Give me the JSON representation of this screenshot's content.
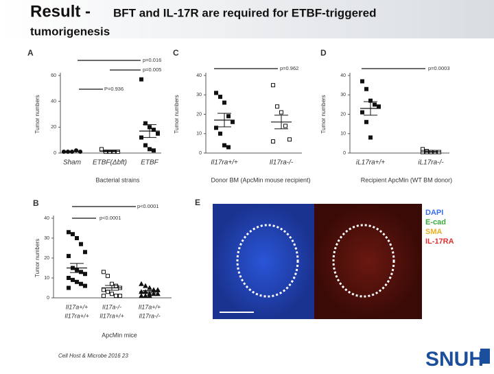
{
  "slide": {
    "title_lead": "Result -",
    "title_rest": "BFT and IL-17R are required for ETBF-triggered",
    "title_line2": "tumorigenesis",
    "citation": "Cell Host & Microbe 2016 23",
    "logo": "SNUH"
  },
  "image_panel": {
    "label": "E",
    "legend": [
      {
        "text": "DAPI",
        "color": "#3a6cf0"
      },
      {
        "text": "E-cad",
        "color": "#3aa83a"
      },
      {
        "text": "SMA",
        "color": "#e8b020"
      },
      {
        "text": "IL-17RA",
        "color": "#e03030"
      }
    ]
  },
  "chart_data": [
    {
      "type": "strip",
      "label": "A",
      "ylabel": "Tumor numbers",
      "xlabel": "Bacterial strains",
      "categories": [
        "Sham",
        "ETBF(Δbft)",
        "ETBF"
      ],
      "markers": [
        "circle-filled",
        "square-open",
        "square-filled"
      ],
      "values": [
        [
          1,
          1,
          1,
          2,
          1
        ],
        [
          3,
          1,
          1,
          1,
          1
        ],
        [
          57,
          23,
          20,
          18,
          15,
          12,
          6,
          3,
          2
        ]
      ],
      "means": [
        1.2,
        1.4,
        17
      ],
      "sems": [
        0.2,
        0.4,
        5
      ],
      "ylim": [
        0,
        60
      ],
      "yticks": [
        0,
        20,
        40,
        60
      ],
      "annotations": [
        "p=0.016",
        "p=0.005",
        "P=0.936"
      ]
    },
    {
      "type": "strip",
      "label": "C",
      "ylabel": "Tumor numbers",
      "xlabel": "Donor BM (ApcMin mouse recipient)",
      "categories": [
        "Il17ra+/+",
        "Il17ra-/-"
      ],
      "markers": [
        "square-filled",
        "square-open"
      ],
      "values": [
        [
          31,
          29,
          26,
          19,
          16,
          13,
          10,
          4,
          3
        ],
        [
          35,
          24,
          21,
          14,
          7,
          6
        ]
      ],
      "means": [
        17,
        16
      ],
      "sems": [
        3.5,
        3.5
      ],
      "ylim": [
        0,
        40
      ],
      "yticks": [
        0,
        10,
        20,
        30,
        40
      ],
      "annotations": [
        "p=0.962"
      ]
    },
    {
      "type": "strip",
      "label": "D",
      "ylabel": "Tumor numbers",
      "xlabel": "Recipient ApcMin (WT BM donor)",
      "categories": [
        "iL17ra+/+",
        "iL17ra-/-"
      ],
      "markers": [
        "square-filled",
        "square-open"
      ],
      "values": [
        [
          37,
          33,
          27,
          25,
          24,
          21,
          16,
          8
        ],
        [
          2,
          1,
          0.5,
          0.5,
          0.5,
          0.5,
          0.5,
          0.5
        ]
      ],
      "means": [
        23,
        0.6
      ],
      "sems": [
        3.5,
        0.2
      ],
      "ylim": [
        0,
        40
      ],
      "yticks": [
        0,
        10,
        20,
        30,
        40
      ],
      "annotations": [
        "p=0.0003"
      ]
    },
    {
      "type": "strip",
      "label": "B",
      "ylabel": "Tumor numbers",
      "xlabel": "ApcMin mice",
      "categories": [
        [
          "Il17a+/+",
          "Il17ra+/+"
        ],
        [
          "Il17a-/-",
          "Il17ra+/+"
        ],
        [
          "Il17a+/+",
          "Il17ra-/-"
        ]
      ],
      "markers": [
        "square-filled",
        "square-open",
        "triangle-filled"
      ],
      "values": [
        [
          33,
          32,
          30,
          27,
          23,
          21,
          15,
          14,
          13,
          12,
          10,
          9,
          8,
          7,
          6,
          5
        ],
        [
          13,
          11,
          7,
          6,
          5,
          4,
          3,
          2,
          1,
          1,
          1
        ],
        [
          7,
          6,
          5,
          4,
          4,
          3,
          3,
          2,
          2,
          2,
          1,
          1,
          1
        ]
      ],
      "means": [
        15,
        5,
        3
      ],
      "sems": [
        2.3,
        1.2,
        0.6
      ],
      "ylim": [
        0,
        40
      ],
      "yticks": [
        0,
        10,
        20,
        30,
        40
      ],
      "annotations": [
        "p<0.0001",
        "p<0.0001"
      ]
    }
  ]
}
